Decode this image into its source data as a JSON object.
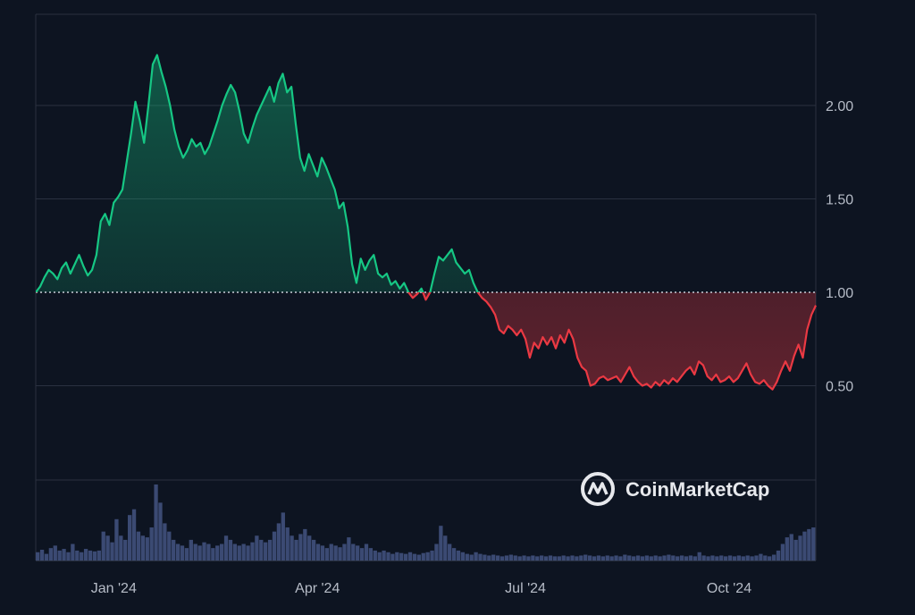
{
  "chart_data": {
    "type": "area",
    "baseline": 1.0,
    "y_ticks": [
      "2.00",
      "1.50",
      "1.00",
      "0.50"
    ],
    "y_tick_values": [
      2.0,
      1.5,
      1.0,
      0.5
    ],
    "ylim": [
      0.0,
      2.5
    ],
    "x_ticks": [
      "Jan '24",
      "Apr '24",
      "Jul '24",
      "Oct '24"
    ],
    "x_tick_indices": [
      18,
      65,
      113,
      160
    ],
    "series": [
      {
        "values": [
          1.0,
          1.03,
          1.08,
          1.12,
          1.1,
          1.07,
          1.13,
          1.16,
          1.1,
          1.15,
          1.2,
          1.14,
          1.09,
          1.12,
          1.2,
          1.38,
          1.42,
          1.36,
          1.48,
          1.51,
          1.55,
          1.7,
          1.85,
          2.02,
          1.92,
          1.8,
          2.0,
          2.22,
          2.27,
          2.18,
          2.1,
          2.0,
          1.87,
          1.78,
          1.72,
          1.76,
          1.82,
          1.78,
          1.8,
          1.74,
          1.78,
          1.85,
          1.92,
          2.0,
          2.06,
          2.11,
          2.07,
          1.97,
          1.85,
          1.8,
          1.88,
          1.95,
          2.0,
          2.05,
          2.1,
          2.02,
          2.12,
          2.17,
          2.07,
          2.1,
          1.9,
          1.72,
          1.65,
          1.74,
          1.68,
          1.62,
          1.72,
          1.67,
          1.61,
          1.55,
          1.45,
          1.48,
          1.35,
          1.15,
          1.05,
          1.18,
          1.12,
          1.17,
          1.2,
          1.1,
          1.08,
          1.1,
          1.04,
          1.06,
          1.02,
          1.05,
          1.0,
          0.97,
          0.99,
          1.02,
          0.96,
          1.0,
          1.1,
          1.19,
          1.17,
          1.2,
          1.23,
          1.16,
          1.13,
          1.1,
          1.12,
          1.05,
          1.0,
          0.97,
          0.95,
          0.92,
          0.88,
          0.8,
          0.78,
          0.82,
          0.8,
          0.77,
          0.8,
          0.75,
          0.65,
          0.73,
          0.7,
          0.76,
          0.72,
          0.76,
          0.7,
          0.77,
          0.73,
          0.8,
          0.75,
          0.65,
          0.6,
          0.58,
          0.5,
          0.51,
          0.54,
          0.55,
          0.53,
          0.54,
          0.55,
          0.52,
          0.56,
          0.6,
          0.55,
          0.52,
          0.5,
          0.51,
          0.49,
          0.52,
          0.5,
          0.53,
          0.51,
          0.54,
          0.52,
          0.55,
          0.58,
          0.6,
          0.56,
          0.63,
          0.61,
          0.55,
          0.53,
          0.56,
          0.52,
          0.53,
          0.55,
          0.52,
          0.54,
          0.58,
          0.62,
          0.56,
          0.52,
          0.51,
          0.53,
          0.5,
          0.48,
          0.52,
          0.58,
          0.63,
          0.58,
          0.66,
          0.72,
          0.65,
          0.8,
          0.88,
          0.93
        ]
      }
    ],
    "volume": [
      0.1,
      0.13,
      0.08,
      0.15,
      0.18,
      0.12,
      0.14,
      0.1,
      0.2,
      0.12,
      0.1,
      0.14,
      0.12,
      0.11,
      0.12,
      0.35,
      0.3,
      0.22,
      0.5,
      0.3,
      0.25,
      0.55,
      0.62,
      0.35,
      0.3,
      0.28,
      0.4,
      0.92,
      0.7,
      0.45,
      0.35,
      0.25,
      0.2,
      0.18,
      0.15,
      0.25,
      0.2,
      0.18,
      0.22,
      0.2,
      0.15,
      0.18,
      0.2,
      0.3,
      0.25,
      0.2,
      0.18,
      0.2,
      0.18,
      0.22,
      0.3,
      0.25,
      0.22,
      0.25,
      0.35,
      0.45,
      0.58,
      0.4,
      0.3,
      0.25,
      0.32,
      0.38,
      0.3,
      0.25,
      0.2,
      0.18,
      0.15,
      0.2,
      0.18,
      0.16,
      0.2,
      0.28,
      0.2,
      0.18,
      0.15,
      0.2,
      0.15,
      0.12,
      0.1,
      0.12,
      0.1,
      0.08,
      0.1,
      0.09,
      0.08,
      0.1,
      0.08,
      0.07,
      0.09,
      0.1,
      0.12,
      0.2,
      0.42,
      0.3,
      0.2,
      0.15,
      0.12,
      0.1,
      0.08,
      0.07,
      0.1,
      0.08,
      0.07,
      0.06,
      0.07,
      0.06,
      0.05,
      0.06,
      0.07,
      0.06,
      0.05,
      0.06,
      0.05,
      0.06,
      0.05,
      0.06,
      0.05,
      0.06,
      0.05,
      0.05,
      0.06,
      0.05,
      0.06,
      0.05,
      0.06,
      0.07,
      0.06,
      0.05,
      0.06,
      0.05,
      0.06,
      0.05,
      0.06,
      0.05,
      0.07,
      0.06,
      0.05,
      0.06,
      0.05,
      0.06,
      0.05,
      0.06,
      0.05,
      0.06,
      0.07,
      0.06,
      0.05,
      0.06,
      0.05,
      0.06,
      0.05,
      0.1,
      0.06,
      0.05,
      0.06,
      0.05,
      0.06,
      0.05,
      0.06,
      0.05,
      0.06,
      0.05,
      0.06,
      0.05,
      0.06,
      0.08,
      0.06,
      0.05,
      0.07,
      0.12,
      0.2,
      0.28,
      0.32,
      0.25,
      0.3,
      0.35,
      0.38,
      0.4
    ]
  },
  "brand": {
    "name": "CoinMarketCap",
    "icon": "coinmarketcap-logo-icon"
  },
  "colors": {
    "background": "#0d1421",
    "up": "#16c784",
    "down": "#ea3943",
    "grid": "#2a3140",
    "text": "#b6bcc7",
    "volume": "#3b4a73",
    "brand_text": "#e6e8ec"
  }
}
